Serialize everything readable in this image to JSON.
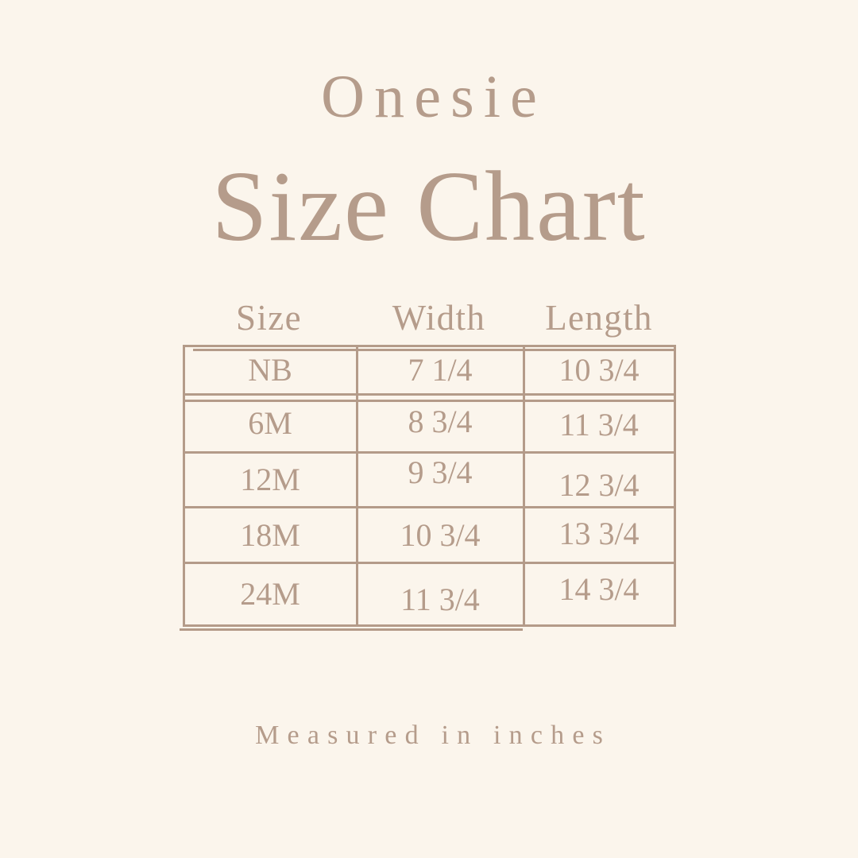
{
  "header": {
    "product": "Onesie",
    "title": "Size Chart"
  },
  "table": {
    "headers": [
      "Size",
      "Width",
      "Length"
    ],
    "rows": [
      {
        "size": "NB",
        "width": "7 1/4",
        "length": "10 3/4"
      },
      {
        "size": "6M",
        "width": "8 3/4",
        "length": "11 3/4"
      },
      {
        "size": "12M",
        "width": "9 3/4",
        "length": "12 3/4"
      },
      {
        "size": "18M",
        "width": "10 3/4",
        "length": "13 3/4"
      },
      {
        "size": "24M",
        "width": "11 3/4",
        "length": "14 3/4"
      }
    ]
  },
  "footer": {
    "note": "Measured in inches"
  },
  "colors": {
    "background": "#FBF5EC",
    "text": "#B59C8B",
    "table_border": "#B49B89"
  },
  "chart_data": {
    "type": "table",
    "title": "Size Chart",
    "subtitle": "Onesie",
    "columns": [
      "Size",
      "Width",
      "Length"
    ],
    "rows": [
      [
        "NB",
        "7 1/4",
        "10 3/4"
      ],
      [
        "6M",
        "8 3/4",
        "11 3/4"
      ],
      [
        "12M",
        "9 3/4",
        "12 3/4"
      ],
      [
        "18M",
        "10 3/4",
        "13 3/4"
      ],
      [
        "24M",
        "11 3/4",
        "14 3/4"
      ]
    ],
    "units": "inches",
    "note": "Measured in inches"
  }
}
